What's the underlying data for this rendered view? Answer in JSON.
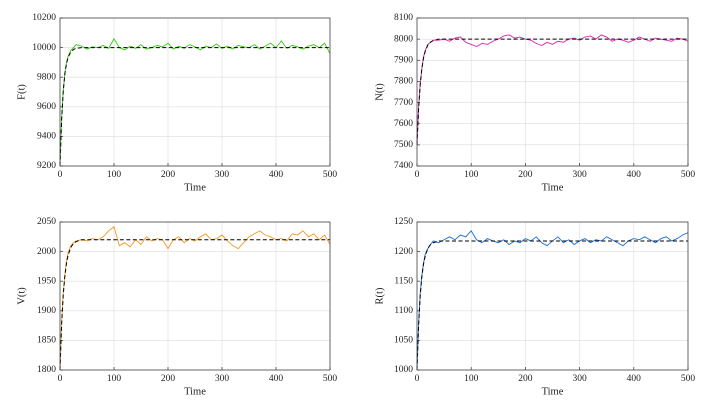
{
  "chart_data": [
    {
      "type": "line",
      "ylabel": "F(t)",
      "xlabel": "Time",
      "grid": true,
      "x": [
        0,
        3,
        6,
        9,
        12,
        15,
        20,
        25,
        30,
        40,
        50,
        60,
        70,
        80,
        90,
        100,
        110,
        120,
        130,
        140,
        150,
        160,
        170,
        180,
        190,
        200,
        210,
        220,
        230,
        240,
        250,
        260,
        270,
        280,
        290,
        300,
        310,
        320,
        330,
        340,
        350,
        360,
        370,
        380,
        390,
        400,
        410,
        420,
        430,
        440,
        450,
        460,
        470,
        480,
        490,
        500
      ],
      "xlim": [
        0,
        500
      ],
      "xticks": [
        0,
        100,
        200,
        300,
        400,
        500
      ],
      "ylim": [
        9200,
        10200
      ],
      "yticks": [
        9200,
        9400,
        9600,
        9800,
        10000,
        10200
      ],
      "series": [
        {
          "color": "#33cc11",
          "values": [
            9200,
            9520,
            9700,
            9830,
            9900,
            9940,
            9980,
            10000,
            10020,
            10010,
            9990,
            10005,
            10000,
            10015,
            9995,
            10060,
            10000,
            9985,
            10010,
            9995,
            10020,
            9990,
            10000,
            10015,
            10005,
            10030,
            9990,
            10010,
            9995,
            10020,
            10005,
            9985,
            10010,
            10000,
            10025,
            9995,
            10010,
            9990,
            10015,
            10005,
            10000,
            10020,
            9990,
            10010,
            10030,
            10000,
            10045,
            9995,
            10015,
            10005,
            9990,
            10010,
            10020,
            10000,
            10030,
            9960
          ]
        },
        {
          "color": "#000000",
          "dash": true,
          "values": [
            9200,
            9514,
            9706,
            9822,
            9892,
            9934,
            9971,
            9988,
            9995,
            10000,
            10000,
            10000,
            10000,
            10000,
            10000,
            10000,
            10000,
            10000,
            10000,
            10000,
            10000,
            10000,
            10000,
            10000,
            10000,
            10000,
            10000,
            10000,
            10000,
            10000,
            10000,
            10000,
            10000,
            10000,
            10000,
            10000,
            10000,
            10000,
            10000,
            10000,
            10000,
            10000,
            10000,
            10000,
            10000,
            10000,
            10000,
            10000,
            10000,
            10000,
            10000,
            10000,
            10000,
            10000,
            10000,
            10000
          ]
        }
      ]
    },
    {
      "type": "line",
      "ylabel": "N(t)",
      "xlabel": "Time",
      "grid": true,
      "x": [
        0,
        3,
        6,
        9,
        12,
        15,
        20,
        25,
        30,
        40,
        50,
        60,
        70,
        80,
        90,
        100,
        110,
        120,
        130,
        140,
        150,
        160,
        170,
        180,
        190,
        200,
        210,
        220,
        230,
        240,
        250,
        260,
        270,
        280,
        290,
        300,
        310,
        320,
        330,
        340,
        350,
        360,
        370,
        380,
        390,
        400,
        410,
        420,
        430,
        440,
        450,
        460,
        470,
        480,
        490,
        500
      ],
      "xlim": [
        0,
        500
      ],
      "xticks": [
        0,
        100,
        200,
        300,
        400,
        500
      ],
      "ylim": [
        7400,
        8100
      ],
      "yticks": [
        7400,
        7500,
        7600,
        7700,
        7800,
        7900,
        8000,
        8100
      ],
      "series": [
        {
          "color": "#e020b4",
          "values": [
            7500,
            7680,
            7790,
            7860,
            7915,
            7945,
            7975,
            7985,
            7995,
            7995,
            8000,
            7990,
            8005,
            8010,
            7985,
            7975,
            7965,
            7980,
            7975,
            7990,
            8000,
            8015,
            8020,
            8005,
            8010,
            8000,
            7995,
            7980,
            7970,
            7985,
            7975,
            7990,
            7985,
            8000,
            8005,
            7995,
            8010,
            8015,
            8000,
            8020,
            8010,
            7990,
            8000,
            7995,
            7985,
            7995,
            8010,
            8000,
            7990,
            8005,
            8000,
            7995,
            7990,
            8005,
            8000,
            7990
          ]
        },
        {
          "color": "#000000",
          "dash": true,
          "values": [
            7500,
            7675,
            7788,
            7862,
            7910,
            7941,
            7972,
            7986,
            7993,
            8000,
            8000,
            8000,
            8000,
            8000,
            8000,
            8000,
            8000,
            8000,
            8000,
            8000,
            8000,
            8000,
            8000,
            8000,
            8000,
            8000,
            8000,
            8000,
            8000,
            8000,
            8000,
            8000,
            8000,
            8000,
            8000,
            8000,
            8000,
            8000,
            8000,
            8000,
            8000,
            8000,
            8000,
            8000,
            8000,
            8000,
            8000,
            8000,
            8000,
            8000,
            8000,
            8000,
            8000,
            8000,
            8000,
            8000
          ]
        }
      ]
    },
    {
      "type": "line",
      "ylabel": "V(t)",
      "xlabel": "Time",
      "grid": true,
      "x": [
        0,
        3,
        6,
        9,
        12,
        15,
        20,
        25,
        30,
        40,
        50,
        60,
        70,
        80,
        90,
        100,
        110,
        120,
        130,
        140,
        150,
        160,
        170,
        180,
        190,
        200,
        210,
        220,
        230,
        240,
        250,
        260,
        270,
        280,
        290,
        300,
        310,
        320,
        330,
        340,
        350,
        360,
        370,
        380,
        390,
        400,
        410,
        420,
        430,
        440,
        450,
        460,
        470,
        480,
        490,
        500
      ],
      "xlim": [
        0,
        500
      ],
      "xticks": [
        0,
        100,
        200,
        300,
        400,
        500
      ],
      "ylim": [
        1800,
        2050
      ],
      "yticks": [
        1800,
        1850,
        1900,
        1950,
        2000,
        2050
      ],
      "series": [
        {
          "color": "#f59a1e",
          "values": [
            1800,
            1880,
            1930,
            1960,
            1985,
            1998,
            2010,
            2015,
            2018,
            2020,
            2018,
            2022,
            2020,
            2025,
            2035,
            2042,
            2010,
            2015,
            2008,
            2020,
            2012,
            2025,
            2018,
            2022,
            2020,
            2005,
            2020,
            2025,
            2015,
            2022,
            2018,
            2025,
            2030,
            2020,
            2022,
            2028,
            2018,
            2010,
            2005,
            2015,
            2025,
            2030,
            2035,
            2028,
            2025,
            2020,
            2022,
            2018,
            2030,
            2028,
            2035,
            2025,
            2030,
            2020,
            2028,
            2012
          ]
        },
        {
          "color": "#000000",
          "dash": true,
          "values": [
            1800,
            1877,
            1927,
            1959,
            1980,
            1994,
            2007,
            2014,
            2017,
            2020,
            2020,
            2020,
            2020,
            2020,
            2020,
            2020,
            2020,
            2020,
            2020,
            2020,
            2020,
            2020,
            2020,
            2020,
            2020,
            2020,
            2020,
            2020,
            2020,
            2020,
            2020,
            2020,
            2020,
            2020,
            2020,
            2020,
            2020,
            2020,
            2020,
            2020,
            2020,
            2020,
            2020,
            2020,
            2020,
            2020,
            2020,
            2020,
            2020,
            2020,
            2020,
            2020,
            2020,
            2020,
            2020,
            2020
          ]
        }
      ]
    },
    {
      "type": "line",
      "ylabel": "R(t)",
      "xlabel": "Time",
      "grid": true,
      "x": [
        0,
        3,
        6,
        9,
        12,
        15,
        20,
        25,
        30,
        40,
        50,
        60,
        70,
        80,
        90,
        100,
        110,
        120,
        130,
        140,
        150,
        160,
        170,
        180,
        190,
        200,
        210,
        220,
        230,
        240,
        250,
        260,
        270,
        280,
        290,
        300,
        310,
        320,
        330,
        340,
        350,
        360,
        370,
        380,
        390,
        400,
        410,
        420,
        430,
        440,
        450,
        460,
        470,
        480,
        490,
        500
      ],
      "xlim": [
        0,
        500
      ],
      "xticks": [
        0,
        100,
        200,
        300,
        400,
        500
      ],
      "ylim": [
        1000,
        1250
      ],
      "yticks": [
        1000,
        1050,
        1100,
        1150,
        1200,
        1250
      ],
      "series": [
        {
          "color": "#1a6fdc",
          "values": [
            1000,
            1080,
            1130,
            1160,
            1180,
            1195,
            1205,
            1212,
            1218,
            1215,
            1220,
            1225,
            1220,
            1228,
            1225,
            1235,
            1220,
            1215,
            1222,
            1218,
            1215,
            1220,
            1212,
            1218,
            1215,
            1222,
            1218,
            1225,
            1215,
            1210,
            1218,
            1225,
            1215,
            1220,
            1212,
            1218,
            1222,
            1215,
            1220,
            1218,
            1225,
            1220,
            1215,
            1210,
            1218,
            1222,
            1220,
            1225,
            1220,
            1215,
            1222,
            1225,
            1218,
            1222,
            1228,
            1232
          ]
        },
        {
          "color": "#000000",
          "dash": true,
          "values": [
            1000,
            1076,
            1126,
            1158,
            1179,
            1192,
            1206,
            1212,
            1215,
            1218,
            1218,
            1218,
            1218,
            1218,
            1218,
            1218,
            1218,
            1218,
            1218,
            1218,
            1218,
            1218,
            1218,
            1218,
            1218,
            1218,
            1218,
            1218,
            1218,
            1218,
            1218,
            1218,
            1218,
            1218,
            1218,
            1218,
            1218,
            1218,
            1218,
            1218,
            1218,
            1218,
            1218,
            1218,
            1218,
            1218,
            1218,
            1218,
            1218,
            1218,
            1218,
            1218,
            1218,
            1218,
            1218,
            1218
          ]
        }
      ]
    }
  ]
}
